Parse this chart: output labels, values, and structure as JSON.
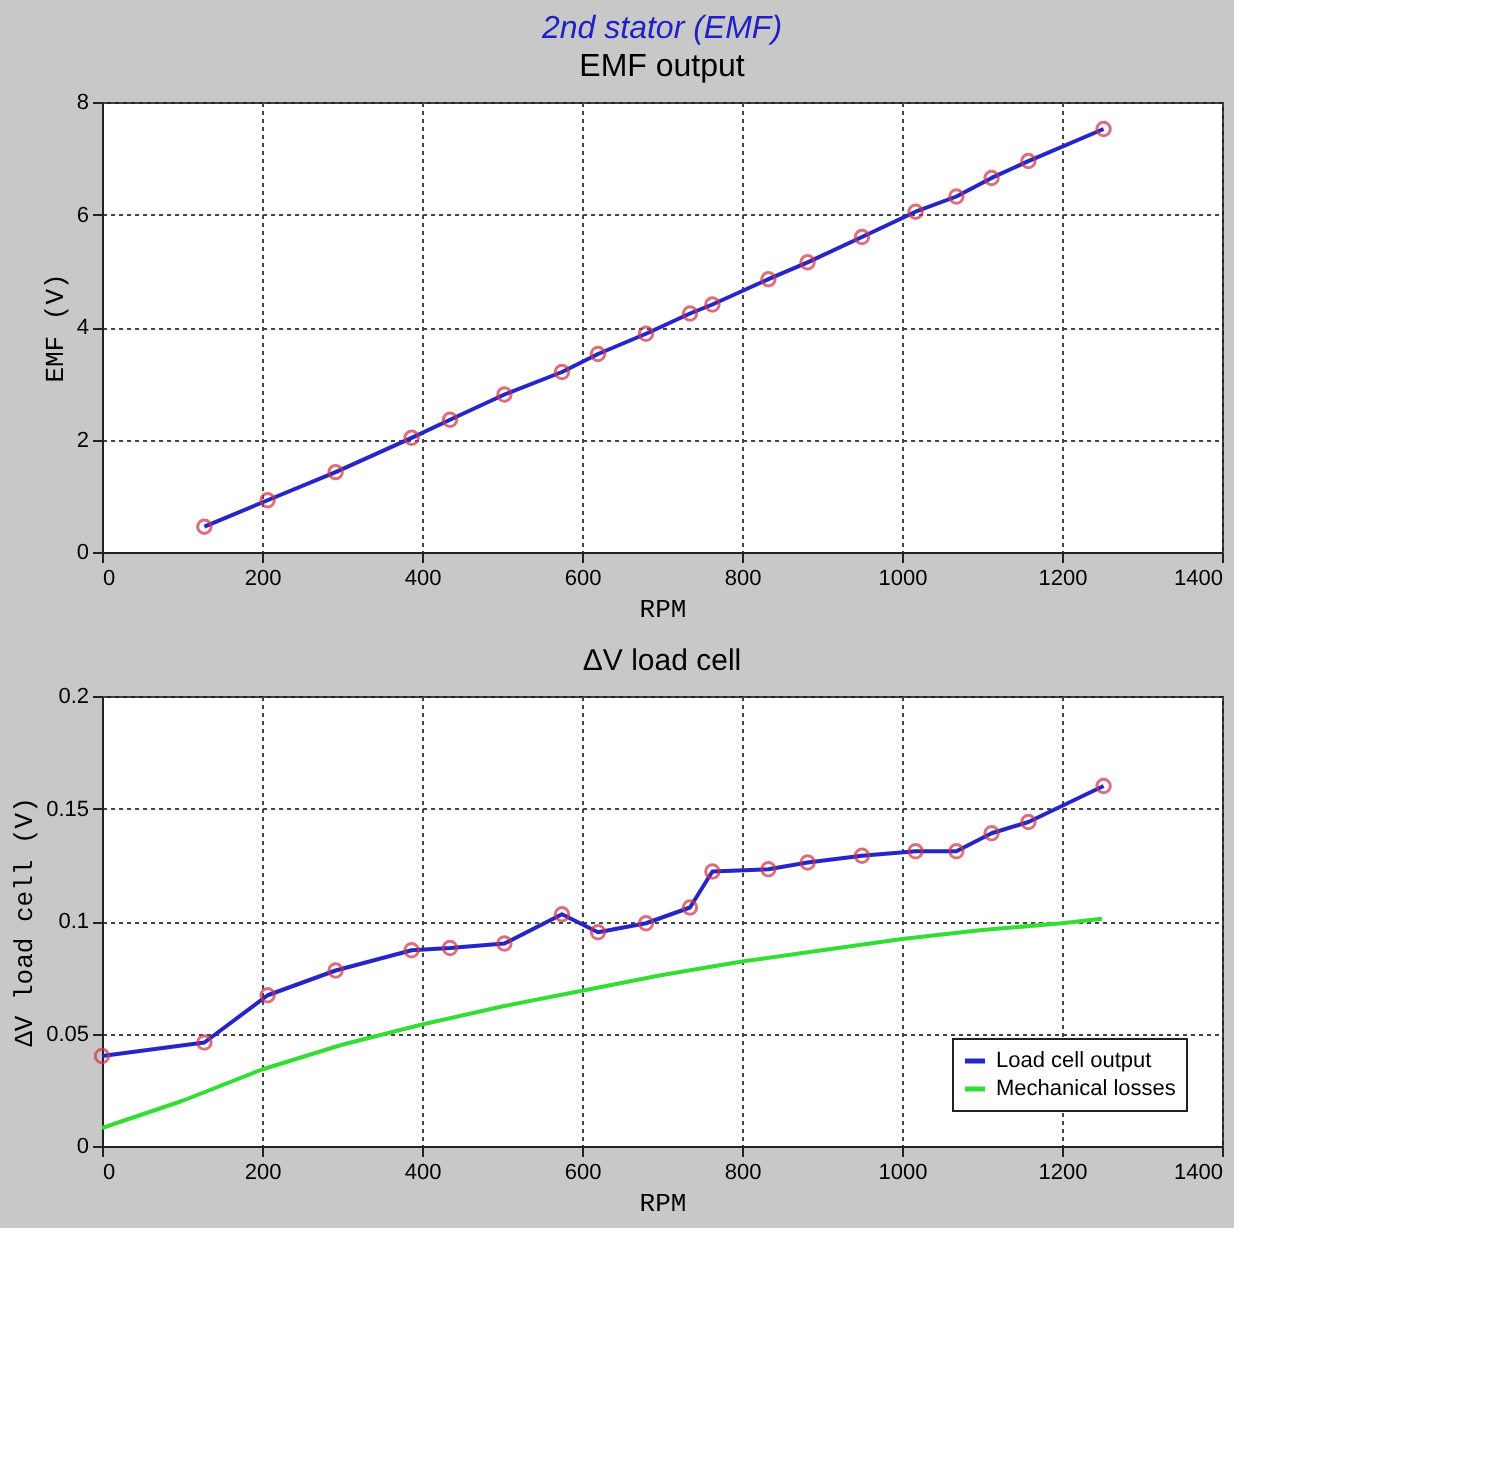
{
  "chart_data": [
    {
      "type": "line",
      "title": "2nd stator (EMF)",
      "subtitle": "EMF output",
      "xlabel": "RPM",
      "ylabel": "EMF  (V)",
      "xlim": [
        0,
        1400
      ],
      "xticks": [
        0,
        200,
        400,
        600,
        800,
        1000,
        1200,
        1400
      ],
      "ylim": [
        0,
        8
      ],
      "yticks": [
        0,
        2,
        4,
        6,
        8
      ],
      "grid": true,
      "legend": false,
      "marker": "circle",
      "line_style": "solid",
      "series": [
        {
          "color": "#2626c8",
          "x": [
            128,
            207,
            292,
            387,
            435,
            503,
            575,
            620,
            680,
            735,
            763,
            833,
            882,
            950,
            1017,
            1068,
            1112,
            1158,
            1252
          ],
          "values": [
            0.45,
            0.92,
            1.42,
            2.03,
            2.35,
            2.8,
            3.2,
            3.52,
            3.88,
            4.24,
            4.4,
            4.85,
            5.15,
            5.6,
            6.05,
            6.32,
            6.65,
            6.95,
            7.52
          ]
        }
      ]
    },
    {
      "type": "line",
      "title": "ΔV load cell",
      "xlabel": "RPM",
      "ylabel": "ΔV load cell (V)",
      "xlim": [
        0,
        1400
      ],
      "xticks": [
        0,
        200,
        400,
        600,
        800,
        1000,
        1200,
        1400
      ],
      "ylim": [
        0,
        0.2
      ],
      "yticks": [
        0,
        0.05,
        0.1,
        0.15,
        0.2
      ],
      "grid": true,
      "legend": "bottom right",
      "line_style": "solid",
      "series": [
        {
          "name": "Load cell output",
          "color": "#2626c8",
          "marker": "circle",
          "x": [
            0,
            128,
            207,
            292,
            387,
            435,
            503,
            575,
            620,
            680,
            735,
            763,
            833,
            882,
            950,
            1017,
            1068,
            1112,
            1158,
            1252
          ],
          "values": [
            0.04,
            0.046,
            0.067,
            0.078,
            0.087,
            0.088,
            0.09,
            0.103,
            0.095,
            0.099,
            0.106,
            0.122,
            0.123,
            0.126,
            0.129,
            0.131,
            0.131,
            0.139,
            0.144,
            0.16
          ]
        },
        {
          "name": "Mechanical losses",
          "color": "#33dd33",
          "marker": "none",
          "x": [
            0,
            100,
            200,
            300,
            400,
            500,
            600,
            700,
            800,
            900,
            1000,
            1100,
            1200,
            1250
          ],
          "values": [
            0.008,
            0.02,
            0.034,
            0.045,
            0.054,
            0.062,
            0.069,
            0.076,
            0.082,
            0.087,
            0.092,
            0.096,
            0.099,
            0.101
          ]
        }
      ]
    }
  ]
}
